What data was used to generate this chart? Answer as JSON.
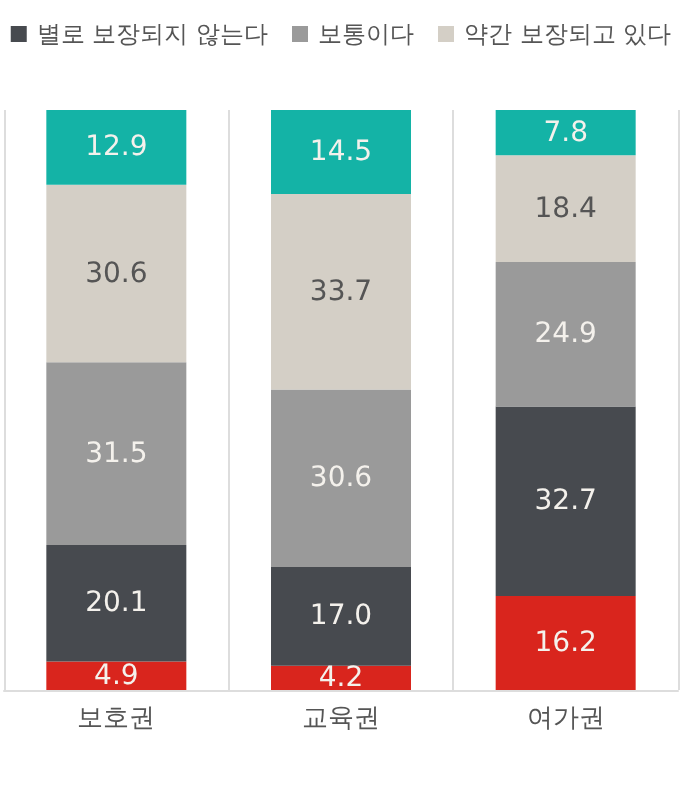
{
  "chart_data": {
    "type": "bar",
    "stacked": true,
    "categories": [
      "보호권",
      "교육권",
      "여가권"
    ],
    "series": [
      {
        "color": "#d9251d",
        "values": [
          4.9,
          4.2,
          16.2
        ],
        "value_labels": [
          "4.9",
          "4.2",
          "16.2"
        ]
      },
      {
        "name": "별로 보장되지 않는다",
        "color": "#474a4f",
        "values": [
          20.1,
          17.0,
          32.7
        ],
        "value_labels": [
          "20.1",
          "17.0",
          "32.7"
        ]
      },
      {
        "name": "보통이다",
        "color": "#9a9a9a",
        "values": [
          31.5,
          30.6,
          24.9
        ],
        "value_labels": [
          "31.5",
          "30.6",
          "24.9"
        ]
      },
      {
        "name": "약간 보장되고 있다",
        "color": "#d4cfc6",
        "values": [
          30.6,
          33.7,
          18.4
        ],
        "value_labels": [
          "30.6",
          "33.7",
          "18.4"
        ]
      },
      {
        "color": "#14b3a6",
        "values": [
          12.9,
          14.5,
          7.8
        ],
        "value_labels": [
          "12.9",
          "14.5",
          "7.8"
        ]
      }
    ],
    "ylim": [
      0,
      100
    ],
    "legend": "top",
    "grid": "x",
    "tick_labels": "x"
  }
}
